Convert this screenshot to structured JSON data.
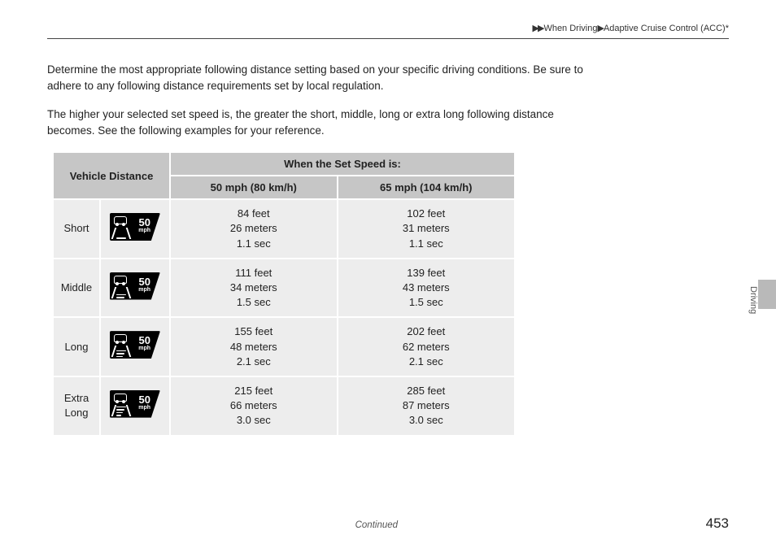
{
  "breadcrumb": {
    "part1": "When Driving",
    "part2": "Adaptive Cruise Control (ACC)*"
  },
  "para1": "Determine the most appropriate following distance setting based on your specific driving conditions. Be sure to adhere to any following distance requirements set by local regulation.",
  "para2": "The higher your selected set speed is, the greater the short, middle, long or extra long following distance becomes. See the following examples for your reference.",
  "table": {
    "header_vd": "Vehicle Distance",
    "header_when": "When the Set Speed is:",
    "header_col1": "50 mph (80 km/h)",
    "header_col2": "65 mph (104 km/h)",
    "icon_speed": "50",
    "icon_unit": "mph",
    "rows": [
      {
        "label": "Short",
        "bars": 1,
        "c1_ft": "84 feet",
        "c1_m": "26 meters",
        "c1_s": "1.1 sec",
        "c2_ft": "102 feet",
        "c2_m": "31 meters",
        "c2_s": "1.1 sec"
      },
      {
        "label": "Middle",
        "bars": 2,
        "c1_ft": "111 feet",
        "c1_m": "34 meters",
        "c1_s": "1.5 sec",
        "c2_ft": "139 feet",
        "c2_m": "43 meters",
        "c2_s": "1.5 sec"
      },
      {
        "label": "Long",
        "bars": 3,
        "c1_ft": "155 feet",
        "c1_m": "48 meters",
        "c1_s": "2.1 sec",
        "c2_ft": "202 feet",
        "c2_m": "62 meters",
        "c2_s": "2.1 sec"
      },
      {
        "label": "Extra Long",
        "bars": 4,
        "c1_ft": "215 feet",
        "c1_m": "66 meters",
        "c1_s": "3.0 sec",
        "c2_ft": "285 feet",
        "c2_m": "87 meters",
        "c2_s": "3.0 sec"
      }
    ]
  },
  "side_label": "Driving",
  "continued": "Continued",
  "page_number": "453",
  "colors": {
    "header_bg": "#c6c6c6",
    "cell_bg": "#ededed",
    "rule": "#444444",
    "text": "#222222",
    "icon_bg": "#000000",
    "icon_fg": "#ffffff",
    "tab_bg": "#b9b9b9"
  }
}
